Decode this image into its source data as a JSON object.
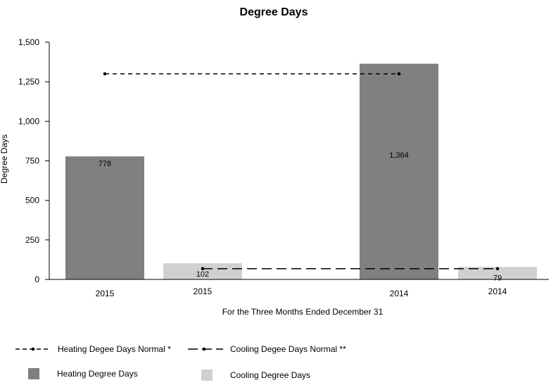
{
  "chart_data": {
    "type": "bar",
    "title": "Degree Days",
    "xlabel": "For the Three Months Ended December 31",
    "ylabel": "Degree Days",
    "ylim": [
      0,
      1500
    ],
    "yticks": [
      "0",
      "250",
      "500",
      "750",
      "1,000",
      "1,250",
      "1,500"
    ],
    "ytick_values": [
      0,
      250,
      500,
      750,
      1000,
      1250,
      1500
    ],
    "groups": [
      "2015",
      "2014"
    ],
    "bars": [
      {
        "category": "2015",
        "series": "Heating Degree Days",
        "value": 778,
        "label": "778"
      },
      {
        "category": "2015",
        "series": "Cooling Degree Days",
        "value": 102,
        "label": "102"
      },
      {
        "category": "2014",
        "series": "Heating Degree Days",
        "value": 1364,
        "label": "1,364"
      },
      {
        "category": "2014",
        "series": "Cooling Degree Days",
        "value": 79,
        "label": "79"
      }
    ],
    "normals": [
      {
        "name": "Heating Degee Days Normal *",
        "value": 1300,
        "style": "short-dash"
      },
      {
        "name": "Cooling Degee Days Normal **",
        "value": 68,
        "style": "long-dash"
      }
    ],
    "legend": {
      "heating_normal": "Heating Degee Days Normal *",
      "cooling_normal": "Cooling Degee Days Normal **",
      "heating": "Heating Degree Days",
      "cooling": "Cooling Degree Days"
    },
    "colors": {
      "heating": "#808080",
      "cooling": "#d0d0d0",
      "normal_line": "#000000"
    },
    "grid": false,
    "legend_position": "bottom"
  }
}
